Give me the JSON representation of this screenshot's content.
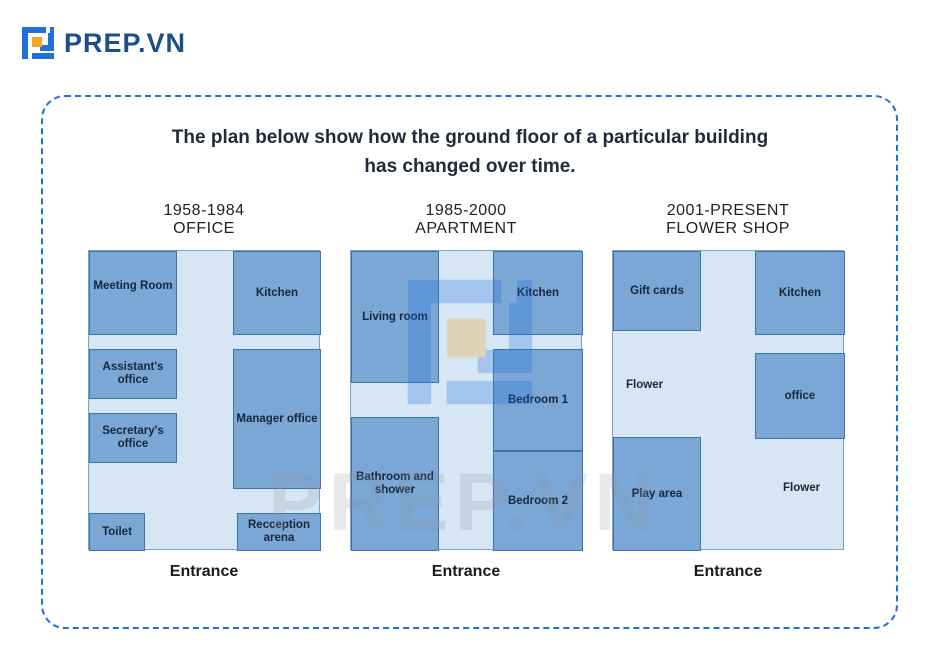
{
  "brand": {
    "name": "PREP.VN",
    "accent": "#1f6fdc",
    "orange": "#f5a623"
  },
  "title": {
    "line1": "The plan below show how the ground floor of a particular building",
    "line2": "has changed over time."
  },
  "plans": [
    {
      "period": "1958-1984",
      "use": "OFFICE",
      "rooms": {
        "meeting": "Meeting Room",
        "kitchen": "Kitchen",
        "assistant": "Assistant's office",
        "secretary": "Secretary's office",
        "manager": "Manager office",
        "toilet": "Toilet",
        "reception": "Recception arena"
      },
      "entrance": "Entrance"
    },
    {
      "period": "1985-2000",
      "use": "APARTMENT",
      "rooms": {
        "living": "Living room",
        "kitchen": "Kitchen",
        "bedroom1": "Bedroom 1",
        "bathroom": "Bathroom and shower",
        "bedroom2": "Bedroom 2"
      },
      "entrance": "Entrance"
    },
    {
      "period": "2001-PRESENT",
      "use": "FLOWER SHOP",
      "rooms": {
        "gift": "Gift cards",
        "kitchen": "Kitchen",
        "flower1": "Flower",
        "office": "office",
        "play": "Play area",
        "flower2": "Flower"
      },
      "entrance": "Entrance"
    }
  ],
  "colors": {
    "room": "#7aa7d6",
    "corridor": "#d6e6f4",
    "border": "#3f72a8"
  }
}
